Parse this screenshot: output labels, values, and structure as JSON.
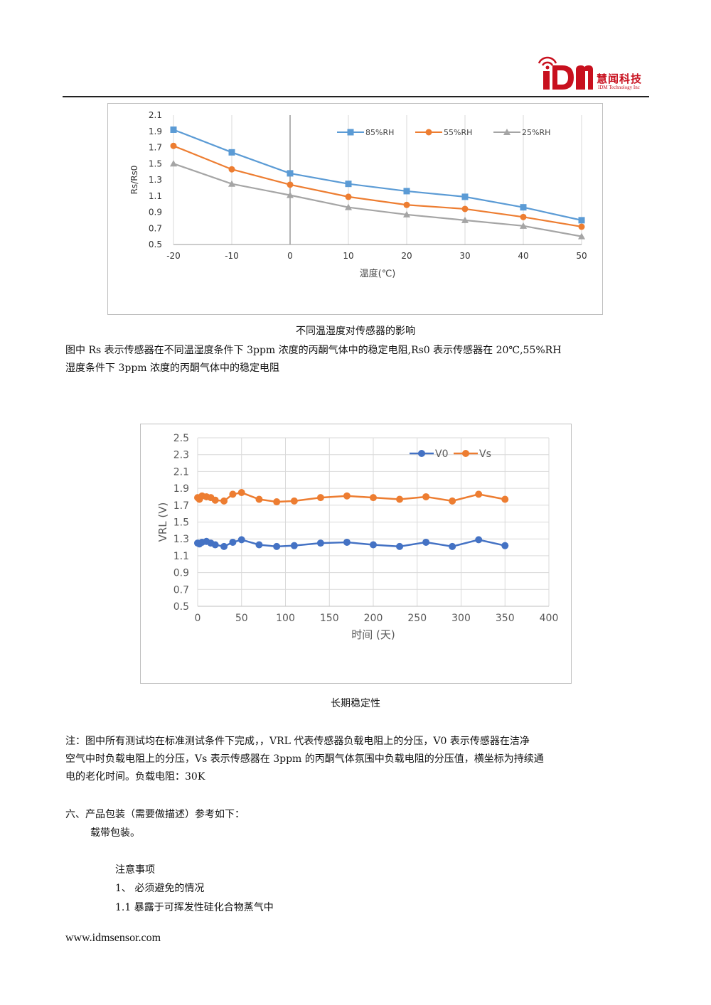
{
  "header": {
    "logo_mark": "iDM",
    "brand_cn": "慧闻科技",
    "brand_en": "IDM Technology Inc"
  },
  "chart1": {
    "caption": "不同温湿度对传感器的影响",
    "colors": {
      "85%RH": "#5b9bd5",
      "55%RH": "#ed7d31",
      "25%RH": "#a5a5a5"
    }
  },
  "chart2": {
    "caption": "长期稳定性",
    "colors": {
      "V0": "#4472c4",
      "Vs": "#ed7d31"
    }
  },
  "chart_data": [
    {
      "type": "line",
      "title": "",
      "xlabel": "温度(℃)",
      "ylabel": "Rs/Rs0",
      "x": [
        -20,
        -10,
        0,
        10,
        20,
        30,
        40,
        50
      ],
      "xlim": [
        -20,
        50
      ],
      "ylim": [
        0.5,
        2.1
      ],
      "yticks": [
        "2.1",
        "1.9",
        "1.7",
        "1.5",
        "1.3",
        "1.1",
        "0.9",
        "0.7",
        "0.5"
      ],
      "xticks": [
        "-20",
        "-10",
        "0",
        "10",
        "20",
        "30",
        "40",
        "50"
      ],
      "legend_position": "top-right",
      "series": [
        {
          "name": "85%RH",
          "values": [
            1.92,
            1.64,
            1.38,
            1.25,
            1.16,
            1.09,
            0.96,
            0.8
          ]
        },
        {
          "name": "55%RH",
          "values": [
            1.72,
            1.43,
            1.24,
            1.09,
            0.99,
            0.94,
            0.84,
            0.72
          ]
        },
        {
          "name": "25%RH",
          "values": [
            1.5,
            1.25,
            1.11,
            0.96,
            0.87,
            0.8,
            0.73,
            0.6
          ]
        }
      ]
    },
    {
      "type": "line",
      "title": "",
      "xlabel": "时间 (天)",
      "ylabel": "VRL (V)",
      "x": [
        0,
        2,
        5,
        10,
        15,
        20,
        30,
        40,
        50,
        70,
        90,
        110,
        140,
        170,
        200,
        230,
        260,
        290,
        320,
        350
      ],
      "xlim": [
        0,
        400
      ],
      "ylim": [
        0.5,
        2.5
      ],
      "yticks": [
        "2.5",
        "2.3",
        "2.1",
        "1.9",
        "1.7",
        "1.5",
        "1.3",
        "1.1",
        "0.9",
        "0.7",
        "0.5"
      ],
      "xticks": [
        "0",
        "50",
        "100",
        "150",
        "200",
        "250",
        "300",
        "350",
        "400"
      ],
      "legend_position": "top-right",
      "series": [
        {
          "name": "V0",
          "values": [
            1.25,
            1.24,
            1.26,
            1.27,
            1.25,
            1.23,
            1.21,
            1.26,
            1.29,
            1.23,
            1.21,
            1.22,
            1.25,
            1.26,
            1.23,
            1.21,
            1.26,
            1.21,
            1.29,
            1.22
          ]
        },
        {
          "name": "Vs",
          "values": [
            1.79,
            1.77,
            1.81,
            1.8,
            1.79,
            1.76,
            1.75,
            1.83,
            1.85,
            1.77,
            1.74,
            1.75,
            1.79,
            1.81,
            1.79,
            1.77,
            1.8,
            1.75,
            1.83,
            1.77
          ]
        }
      ]
    }
  ],
  "texts": {
    "chart1_note_line1": "图中 Rs 表示传感器在不同温湿度条件下 3ppm 浓度的丙酮气体中的稳定电阻,Rs0 表示传感器在 20℃,55%RH",
    "chart1_note_line2": "湿度条件下 3ppm 浓度的丙酮气体中的稳定电阻",
    "note_line1": "注：图中所有测试均在标准测试条件下完成，，VRL 代表传感器负载电阻上的分压，V0 表示传感器在洁净",
    "note_line2": "空气中时负载电阻上的分压，Vs 表示传感器在 3ppm 的丙酮气体氛围中负载电阻的分压值，横坐标为持续通",
    "note_line3": "电的老化时间。负载电阻：30K",
    "section6": "六、产品包装（需要做描述）参考如下：",
    "packaging": "载带包装。",
    "notice_title": "注意事项",
    "item1": "1、 必须避免的情况",
    "item1_1": "1.1 暴露于可挥发性硅化合物蒸气中"
  },
  "footer": {
    "url": "www.idmsensor.com"
  }
}
